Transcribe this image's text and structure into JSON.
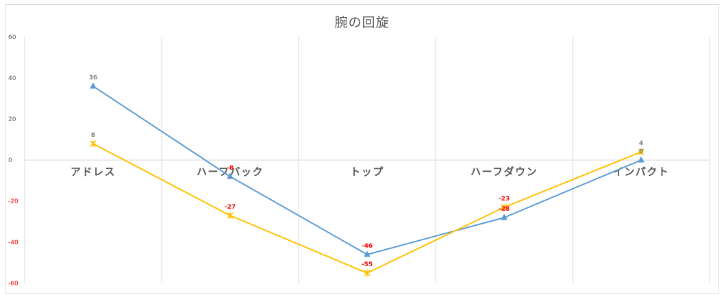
{
  "chart_data": {
    "type": "line",
    "title": "腕の回旋",
    "categories": [
      "アドレス",
      "ハーフバック",
      "トップ",
      "ハーフダウン",
      "インパクト"
    ],
    "series": [
      {
        "color": "#5b9bd5",
        "marker": "triangle",
        "values": [
          36,
          -8,
          -46,
          -28,
          0
        ],
        "labels": [
          "36",
          "-8",
          "-46",
          "-28",
          "0"
        ]
      },
      {
        "color": "#ffc000",
        "marker": "star",
        "values": [
          8,
          -27,
          -55,
          -23,
          4
        ],
        "labels": [
          "8",
          "-27",
          "-55",
          "-23",
          "4"
        ]
      }
    ],
    "ylim": [
      -60,
      60
    ],
    "yticks": [
      60,
      40,
      20,
      0,
      -20,
      -40,
      -60
    ],
    "ytick_labels": [
      "60",
      "40",
      "20",
      "0",
      "-20",
      "-40",
      "-60"
    ],
    "negative_label_color": "#ff0000",
    "positive_label_color": "#7f7f7f",
    "grid": "vertical",
    "legend": "none"
  }
}
